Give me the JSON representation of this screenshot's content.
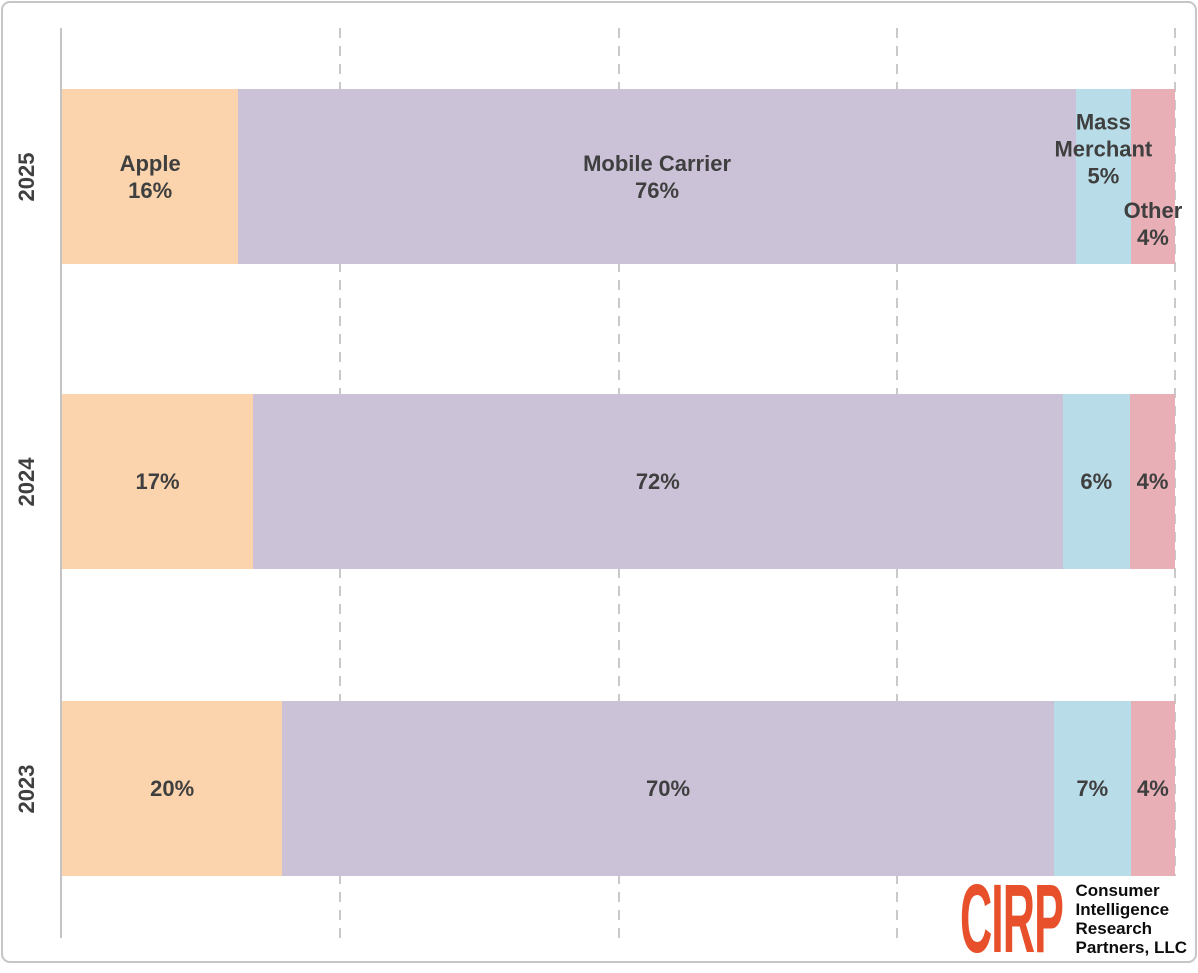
{
  "chart_data": {
    "type": "bar",
    "orientation": "horizontal_stacked",
    "title": "",
    "xlabel": "",
    "ylabel": "",
    "categories": [
      "2025",
      "2024",
      "2023"
    ],
    "series": [
      {
        "name": "Apple",
        "color": "#FBD4AD",
        "values": [
          16,
          17,
          20
        ]
      },
      {
        "name": "Mobile Carrier",
        "color": "#CBC2D8",
        "values": [
          76,
          72,
          70
        ]
      },
      {
        "name": "Mass Merchant",
        "color": "#B9DDE8",
        "values": [
          5,
          6,
          7
        ]
      },
      {
        "name": "Other",
        "color": "#E9AFB6",
        "values": [
          4,
          4,
          4
        ]
      }
    ],
    "x_axis": {
      "min": 0,
      "max": 100,
      "gridlines_percent": [
        25,
        50,
        75,
        100
      ],
      "gridline_style": "dashed"
    },
    "legend": "none",
    "bar_labels": [
      [
        [
          "Apple",
          "16%"
        ],
        [
          "Mobile Carrier",
          "76%"
        ],
        [
          "Mass",
          "Merchant",
          "5%"
        ],
        [
          "Other",
          "4%"
        ]
      ],
      [
        [
          "17%"
        ],
        [
          "72%"
        ],
        [
          "6%"
        ],
        [
          "4%"
        ]
      ],
      [
        [
          "20%"
        ],
        [
          "70%"
        ],
        [
          "7%"
        ],
        [
          "4%"
        ]
      ]
    ],
    "label_placements": [
      [
        "center",
        "center",
        "above",
        "below"
      ],
      [
        "center",
        "center",
        "center",
        "center"
      ],
      [
        "center",
        "center",
        "center",
        "center"
      ]
    ]
  },
  "logo": {
    "brand": "CIRP",
    "brand_color": "#E8502B",
    "tagline_lines": [
      "Consumer",
      "Intelligence",
      "Research",
      "Partners, LLC"
    ]
  },
  "styles": {
    "label_text_color": "#3F3F3F",
    "axis_text_color": "#404040",
    "gridline_color": "#C9C9C9",
    "border_color": "#C6C6C6",
    "background": "#FFFFFF"
  }
}
